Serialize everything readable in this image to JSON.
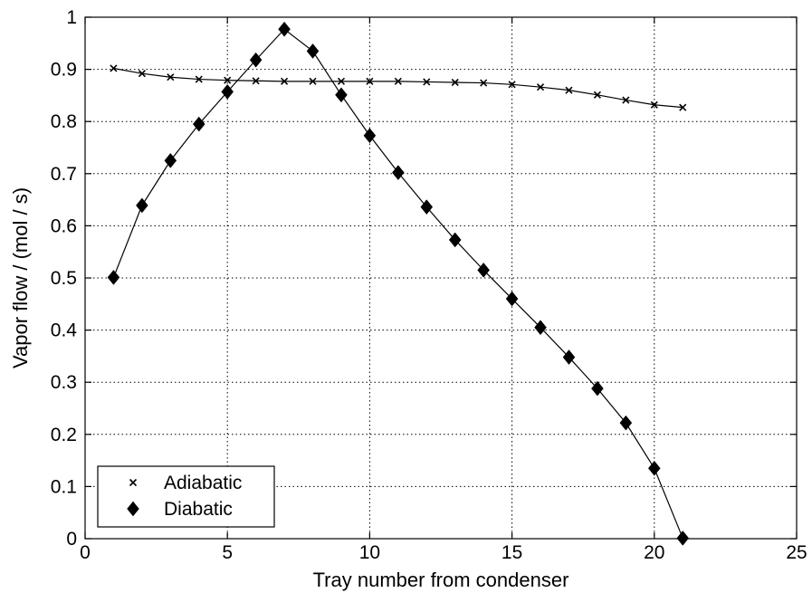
{
  "chart_data": {
    "type": "line",
    "title": "",
    "xlabel": "Tray number from condenser",
    "ylabel": "Vapor flow  /  (mol / s)",
    "xlim": [
      0,
      25
    ],
    "ylim": [
      0,
      1
    ],
    "xticks": [
      0,
      5,
      10,
      15,
      20,
      25
    ],
    "yticks": [
      0,
      0.1,
      0.2,
      0.3,
      0.4,
      0.5,
      0.6,
      0.7,
      0.8,
      0.9,
      1
    ],
    "xtick_labels": [
      "0",
      "5",
      "10",
      "15",
      "20",
      "25"
    ],
    "ytick_labels": [
      "0",
      "0.1",
      "0.2",
      "0.3",
      "0.4",
      "0.5",
      "0.6",
      "0.7",
      "0.8",
      "0.9",
      "1"
    ],
    "grid": true,
    "grid_style": "dotted",
    "legend_position": "bottom-left",
    "series": [
      {
        "name": "Adiabatic",
        "marker": "x",
        "color": "#000000",
        "x": [
          1,
          2,
          3,
          4,
          5,
          6,
          7,
          8,
          9,
          10,
          11,
          12,
          13,
          14,
          15,
          16,
          17,
          18,
          19,
          20,
          21
        ],
        "y": [
          0.902,
          0.892,
          0.885,
          0.881,
          0.879,
          0.878,
          0.877,
          0.877,
          0.877,
          0.877,
          0.877,
          0.876,
          0.875,
          0.874,
          0.871,
          0.866,
          0.86,
          0.851,
          0.841,
          0.832,
          0.827
        ]
      },
      {
        "name": "Diabatic",
        "marker": "diamond",
        "color": "#000000",
        "x": [
          1,
          2,
          3,
          4,
          5,
          6,
          7,
          8,
          9,
          10,
          11,
          12,
          13,
          14,
          15,
          16,
          17,
          18,
          19,
          20,
          21
        ],
        "y": [
          0.501,
          0.639,
          0.725,
          0.795,
          0.857,
          0.918,
          0.977,
          0.935,
          0.851,
          0.773,
          0.702,
          0.636,
          0.573,
          0.515,
          0.46,
          0.405,
          0.348,
          0.288,
          0.222,
          0.135,
          0.001
        ]
      }
    ]
  }
}
